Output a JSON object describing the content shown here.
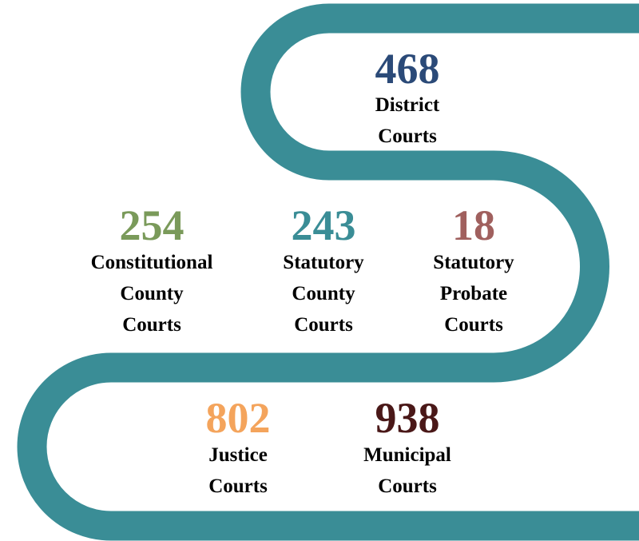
{
  "path_color": "#3a8d96",
  "items": [
    {
      "number": "468",
      "color": "#2b4a78",
      "label": [
        "District",
        "Courts"
      ]
    },
    {
      "number": "254",
      "color": "#7a9a5a",
      "label": [
        "Constitutional",
        "County",
        "Courts"
      ]
    },
    {
      "number": "243",
      "color": "#3a8d96",
      "label": [
        "Statutory",
        "County",
        "Courts"
      ]
    },
    {
      "number": "18",
      "color": "#a0605e",
      "label": [
        "Statutory",
        "Probate",
        "Courts"
      ]
    },
    {
      "number": "802",
      "color": "#f4a45c",
      "label": [
        "Justice",
        "Courts"
      ]
    },
    {
      "number": "938",
      "color": "#4a1818",
      "label": [
        "Municipal",
        "Courts"
      ]
    }
  ]
}
